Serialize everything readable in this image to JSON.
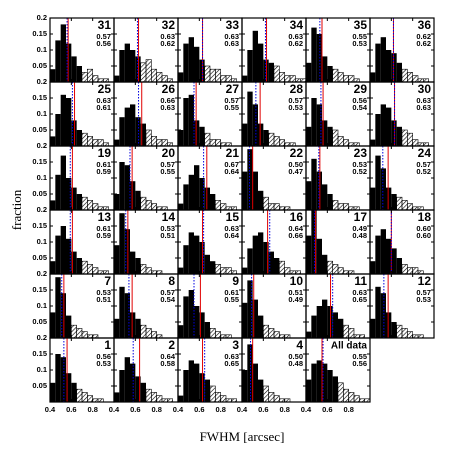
{
  "chart_data": {
    "type": "histogram-grid",
    "xlabel": "FWHM [arcsec]",
    "ylabel": "fraction",
    "xlim": [
      0.4,
      1.0
    ],
    "ylim": [
      0,
      0.2
    ],
    "xticks": [
      0.4,
      0.6,
      0.8
    ],
    "yticks": [
      0.05,
      0.1,
      0.15,
      0.2
    ],
    "bins": [
      0.4,
      0.45,
      0.5,
      0.55,
      0.6,
      0.65,
      0.7,
      0.75,
      0.8,
      0.85,
      0.9,
      0.95,
      1.0
    ],
    "line_colors": [
      "#e00000",
      "#0000e0"
    ],
    "panels": [
      {
        "label": "31",
        "stats": [
          0.57,
          0.56
        ],
        "hatched_from": 0.7,
        "values": [
          0.04,
          0.13,
          0.18,
          0.12,
          0.08,
          0.05,
          0.03,
          0.04,
          0.02,
          0.01,
          0.01,
          0
        ]
      },
      {
        "label": "32",
        "stats": [
          0.63,
          0.62
        ],
        "hatched_from": 0.65,
        "values": [
          0.02,
          0.1,
          0.12,
          0.1,
          0.08,
          0.06,
          0.07,
          0.04,
          0.03,
          0.02,
          0.01,
          0
        ]
      },
      {
        "label": "33",
        "stats": [
          0.63,
          0.63
        ],
        "hatched_from": 0.65,
        "values": [
          0.03,
          0.12,
          0.14,
          0.11,
          0.07,
          0.05,
          0.04,
          0.04,
          0.02,
          0.02,
          0.01,
          0
        ]
      },
      {
        "label": "34",
        "stats": [
          0.63,
          0.62
        ],
        "hatched_from": 0.7,
        "values": [
          0.02,
          0.1,
          0.16,
          0.12,
          0.07,
          0.06,
          0.05,
          0.03,
          0.02,
          0.02,
          0.01,
          0.01
        ]
      },
      {
        "label": "35",
        "stats": [
          0.55,
          0.53
        ],
        "hatched_from": 0.65,
        "values": [
          0.06,
          0.17,
          0.15,
          0.08,
          0.05,
          0.04,
          0.03,
          0.02,
          0.02,
          0.01,
          0,
          0
        ]
      },
      {
        "label": "36",
        "stats": [
          0.62,
          0.62
        ],
        "hatched_from": 0.7,
        "values": [
          0.03,
          0.12,
          0.14,
          0.1,
          0.09,
          0.06,
          0.04,
          0.03,
          0.02,
          0.01,
          0.01,
          0
        ]
      },
      {
        "label": "25",
        "stats": [
          0.63,
          0.61
        ],
        "hatched_from": 0.7,
        "values": [
          0.03,
          0.1,
          0.16,
          0.15,
          0.08,
          0.05,
          0.04,
          0.03,
          0.02,
          0.02,
          0.01,
          0
        ]
      },
      {
        "label": "26",
        "stats": [
          0.66,
          0.63
        ],
        "hatched_from": 0.7,
        "values": [
          0.02,
          0.09,
          0.12,
          0.13,
          0.09,
          0.07,
          0.05,
          0.03,
          0.02,
          0.02,
          0.01,
          0
        ]
      },
      {
        "label": "27",
        "stats": [
          0.57,
          0.55
        ],
        "hatched_from": 0.65,
        "values": [
          0.05,
          0.15,
          0.16,
          0.08,
          0.06,
          0.04,
          0.02,
          0.02,
          0.01,
          0.01,
          0,
          0
        ]
      },
      {
        "label": "28",
        "stats": [
          0.57,
          0.53
        ],
        "hatched_from": 0.65,
        "values": [
          0.07,
          0.17,
          0.13,
          0.07,
          0.05,
          0.04,
          0.03,
          0.02,
          0.01,
          0.01,
          0,
          0
        ]
      },
      {
        "label": "29",
        "stats": [
          0.56,
          0.54
        ],
        "hatched_from": 0.65,
        "values": [
          0.06,
          0.15,
          0.13,
          0.08,
          0.06,
          0.05,
          0.03,
          0.02,
          0.01,
          0.01,
          0,
          0
        ]
      },
      {
        "label": "30",
        "stats": [
          0.63,
          0.63
        ],
        "hatched_from": 0.7,
        "values": [
          0.02,
          0.1,
          0.13,
          0.12,
          0.08,
          0.06,
          0.05,
          0.04,
          0.02,
          0.01,
          0.01,
          0
        ]
      },
      {
        "label": "19",
        "stats": [
          0.61,
          0.59
        ],
        "hatched_from": 0.7,
        "values": [
          0.03,
          0.11,
          0.17,
          0.1,
          0.07,
          0.05,
          0.04,
          0.03,
          0.02,
          0.01,
          0.01,
          0
        ]
      },
      {
        "label": "20",
        "stats": [
          0.57,
          0.55
        ],
        "hatched_from": 0.65,
        "values": [
          0.05,
          0.15,
          0.14,
          0.09,
          0.06,
          0.04,
          0.03,
          0.02,
          0.01,
          0.01,
          0,
          0
        ]
      },
      {
        "label": "21",
        "stats": [
          0.67,
          0.64
        ],
        "hatched_from": 0.75,
        "values": [
          0.02,
          0.08,
          0.11,
          0.14,
          0.1,
          0.07,
          0.05,
          0.03,
          0.02,
          0.01,
          0.01,
          0
        ]
      },
      {
        "label": "22",
        "stats": [
          0.5,
          0.47
        ],
        "stat_labels": [
          "0.50",
          "0.47"
        ],
        "hatched_from": 0.6,
        "values": [
          0.12,
          0.19,
          0.12,
          0.06,
          0.04,
          0.02,
          0.02,
          0.01,
          0.01,
          0,
          0,
          0
        ]
      },
      {
        "label": "23",
        "stats": [
          0.53,
          0.52
        ],
        "hatched_from": 0.65,
        "values": [
          0.09,
          0.16,
          0.12,
          0.08,
          0.05,
          0.03,
          0.02,
          0.02,
          0.01,
          0.01,
          0,
          0
        ]
      },
      {
        "label": "24",
        "stats": [
          0.57,
          0.52
        ],
        "hatched_from": 0.65,
        "values": [
          0.07,
          0.17,
          0.13,
          0.07,
          0.05,
          0.04,
          0.03,
          0.02,
          0.01,
          0.01,
          0,
          0
        ]
      },
      {
        "label": "13",
        "stats": [
          0.61,
          0.59
        ],
        "hatched_from": 0.7,
        "values": [
          0.04,
          0.12,
          0.15,
          0.11,
          0.07,
          0.05,
          0.04,
          0.03,
          0.02,
          0.01,
          0.01,
          0
        ]
      },
      {
        "label": "14",
        "stats": [
          0.53,
          0.51
        ],
        "hatched_from": 0.65,
        "values": [
          0.09,
          0.19,
          0.14,
          0.07,
          0.05,
          0.03,
          0.02,
          0.01,
          0.01,
          0,
          0,
          0
        ]
      },
      {
        "label": "15",
        "stats": [
          0.63,
          0.64
        ],
        "hatched_from": 0.75,
        "values": [
          0.02,
          0.09,
          0.13,
          0.12,
          0.1,
          0.06,
          0.04,
          0.03,
          0.02,
          0.02,
          0.01,
          0
        ]
      },
      {
        "label": "16",
        "stats": [
          0.64,
          0.66
        ],
        "hatched_from": 0.75,
        "values": [
          0.02,
          0.08,
          0.12,
          0.13,
          0.1,
          0.07,
          0.05,
          0.04,
          0.02,
          0.01,
          0.01,
          0
        ]
      },
      {
        "label": "17",
        "stats": [
          0.49,
          0.48
        ],
        "hatched_from": 0.6,
        "values": [
          0.12,
          0.2,
          0.11,
          0.06,
          0.04,
          0.03,
          0.02,
          0.01,
          0.01,
          0,
          0,
          0
        ]
      },
      {
        "label": "18",
        "stats": [
          0.6,
          0.6
        ],
        "stat_labels": [
          "0.60",
          "0.60"
        ],
        "hatched_from": 0.7,
        "values": [
          0.04,
          0.12,
          0.14,
          0.11,
          0.08,
          0.05,
          0.03,
          0.02,
          0.02,
          0.01,
          0,
          0
        ]
      },
      {
        "label": "7",
        "stats": [
          0.53,
          0.51
        ],
        "hatched_from": 0.6,
        "values": [
          0.08,
          0.19,
          0.14,
          0.07,
          0.04,
          0.03,
          0.02,
          0.01,
          0.01,
          0,
          0,
          0
        ]
      },
      {
        "label": "8",
        "stats": [
          0.57,
          0.54
        ],
        "hatched_from": 0.65,
        "values": [
          0.06,
          0.16,
          0.14,
          0.08,
          0.06,
          0.04,
          0.03,
          0.02,
          0.01,
          0,
          0,
          0
        ]
      },
      {
        "label": "9",
        "stats": [
          0.61,
          0.55
        ],
        "hatched_from": 0.7,
        "values": [
          0.04,
          0.13,
          0.15,
          0.1,
          0.08,
          0.05,
          0.03,
          0.02,
          0.01,
          0.01,
          0,
          0
        ]
      },
      {
        "label": "10",
        "stats": [
          0.51,
          0.49
        ],
        "hatched_from": 0.6,
        "values": [
          0.11,
          0.18,
          0.12,
          0.07,
          0.04,
          0.03,
          0.02,
          0.01,
          0.01,
          0,
          0,
          0
        ]
      },
      {
        "label": "11",
        "stats": [
          0.63,
          0.65
        ],
        "hatched_from": 0.75,
        "values": [
          0.02,
          0.07,
          0.1,
          0.12,
          0.1,
          0.08,
          0.06,
          0.04,
          0.03,
          0.01,
          0.01,
          0
        ]
      },
      {
        "label": "12",
        "stats": [
          0.57,
          0.53
        ],
        "hatched_from": 0.65,
        "values": [
          0.06,
          0.16,
          0.14,
          0.08,
          0.05,
          0.04,
          0.03,
          0.02,
          0.01,
          0.01,
          0,
          0
        ]
      },
      {
        "label": "1",
        "stats": [
          0.56,
          0.53
        ],
        "hatched_from": 0.65,
        "values": [
          0.06,
          0.15,
          0.14,
          0.09,
          0.06,
          0.04,
          0.03,
          0.02,
          0.01,
          0.01,
          0,
          0
        ]
      },
      {
        "label": "2",
        "stats": [
          0.64,
          0.58
        ],
        "hatched_from": 0.7,
        "values": [
          0.03,
          0.1,
          0.14,
          0.12,
          0.08,
          0.06,
          0.04,
          0.03,
          0.02,
          0.01,
          0.01,
          0
        ]
      },
      {
        "label": "3",
        "stats": [
          0.63,
          0.65
        ],
        "hatched_from": 0.7,
        "values": [
          0.02,
          0.1,
          0.13,
          0.12,
          0.09,
          0.07,
          0.05,
          0.03,
          0.02,
          0.01,
          0.01,
          0
        ]
      },
      {
        "label": "4",
        "stats": [
          0.5,
          0.48
        ],
        "stat_labels": [
          "0.50",
          "0.48"
        ],
        "hatched_from": 0.6,
        "values": [
          0.1,
          0.18,
          0.12,
          0.07,
          0.05,
          0.03,
          0.02,
          0.01,
          0.01,
          0,
          0,
          0
        ]
      },
      {
        "label": "All data",
        "stats": [
          0.55,
          0.56
        ],
        "hatched_from": 0.7,
        "values": [
          0.07,
          0.12,
          0.13,
          0.12,
          0.1,
          0.08,
          0.06,
          0.04,
          0.03,
          0.02,
          0.01,
          0.01
        ]
      }
    ]
  }
}
